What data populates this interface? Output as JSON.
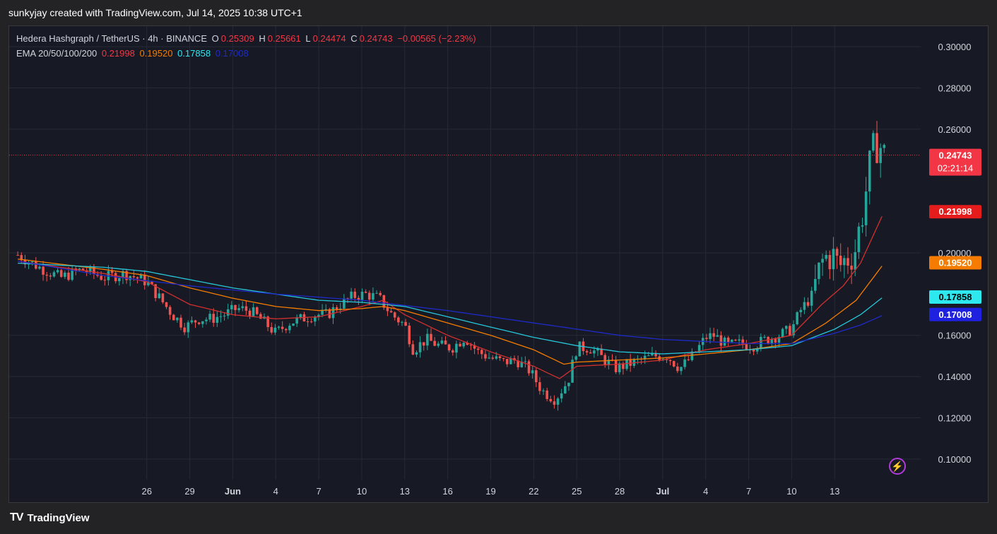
{
  "header": {
    "attribution": "sunkyjay created with TradingView.com, Jul 14, 2025 10:38 UTC+1"
  },
  "legend": {
    "symbol": "Hedera Hashgraph / TetherUS · 4h · BINANCE",
    "o_label": "O",
    "o_value": "0.25309",
    "h_label": "H",
    "h_value": "0.25661",
    "l_label": "L",
    "l_value": "0.24474",
    "c_label": "C",
    "c_value": "0.24743",
    "change": "−0.00565 (−2.23%)",
    "ema_label": "EMA 20/50/100/200",
    "ema_values": [
      "0.21998",
      "0.19520",
      "0.17858",
      "0.17008"
    ]
  },
  "footer": {
    "brand": "TradingView",
    "logo": "TV"
  },
  "colors": {
    "up": "#26a69a",
    "down": "#ef5350",
    "ema20": "#d32f2f",
    "ema50": "#f57c00",
    "ema100": "#26c6da",
    "ema200": "#1e2ac8",
    "grid": "#262a36",
    "last_price": "#f23645"
  },
  "chart_data": {
    "type": "candlestick",
    "timeframe": "4h",
    "ylim": [
      0.09,
      0.31
    ],
    "y_ticks": [
      "0.30000",
      "0.28000",
      "0.26000",
      "0.20000",
      "0.16000",
      "0.14000",
      "0.12000",
      "0.10000"
    ],
    "x_ticks": [
      {
        "label": "26",
        "t": 3
      },
      {
        "label": "29",
        "t": 4.0
      },
      {
        "label": "Jun",
        "t": 5
      },
      {
        "label": "4",
        "t": 6
      },
      {
        "label": "7",
        "t": 7
      },
      {
        "label": "10",
        "t": 8
      },
      {
        "label": "13",
        "t": 9
      },
      {
        "label": "16",
        "t": 10
      },
      {
        "label": "19",
        "t": 11
      },
      {
        "label": "22",
        "t": 12
      },
      {
        "label": "25",
        "t": 13
      },
      {
        "label": "28",
        "t": 14
      },
      {
        "label": "Jul",
        "t": 15
      },
      {
        "label": "4",
        "t": 16
      },
      {
        "label": "7",
        "t": 17
      },
      {
        "label": "10",
        "t": 18
      },
      {
        "label": "13",
        "t": 19
      }
    ],
    "close_series": [
      {
        "t": 0,
        "v": 0.199
      },
      {
        "t": 0.5,
        "v": 0.193
      },
      {
        "t": 1,
        "v": 0.188
      },
      {
        "t": 1.5,
        "v": 0.192
      },
      {
        "t": 2,
        "v": 0.188
      },
      {
        "t": 2.5,
        "v": 0.19
      },
      {
        "t": 3,
        "v": 0.186
      },
      {
        "t": 3.3,
        "v": 0.178
      },
      {
        "t": 3.6,
        "v": 0.17
      },
      {
        "t": 3.9,
        "v": 0.164
      },
      {
        "t": 4.2,
        "v": 0.168
      },
      {
        "t": 4.5,
        "v": 0.168
      },
      {
        "t": 4.8,
        "v": 0.17
      },
      {
        "t": 5.1,
        "v": 0.173
      },
      {
        "t": 5.4,
        "v": 0.172
      },
      {
        "t": 5.7,
        "v": 0.167
      },
      {
        "t": 6.0,
        "v": 0.161
      },
      {
        "t": 6.3,
        "v": 0.166
      },
      {
        "t": 6.6,
        "v": 0.168
      },
      {
        "t": 6.9,
        "v": 0.17
      },
      {
        "t": 7.2,
        "v": 0.17
      },
      {
        "t": 7.5,
        "v": 0.175
      },
      {
        "t": 7.8,
        "v": 0.179
      },
      {
        "t": 8.1,
        "v": 0.18
      },
      {
        "t": 8.4,
        "v": 0.178
      },
      {
        "t": 8.7,
        "v": 0.17
      },
      {
        "t": 9.0,
        "v": 0.165
      },
      {
        "t": 9.2,
        "v": 0.153
      },
      {
        "t": 9.5,
        "v": 0.158
      },
      {
        "t": 9.8,
        "v": 0.155
      },
      {
        "t": 10.1,
        "v": 0.154
      },
      {
        "t": 10.4,
        "v": 0.159
      },
      {
        "t": 10.7,
        "v": 0.152
      },
      {
        "t": 11.0,
        "v": 0.149
      },
      {
        "t": 11.3,
        "v": 0.147
      },
      {
        "t": 11.6,
        "v": 0.148
      },
      {
        "t": 11.9,
        "v": 0.143
      },
      {
        "t": 12.2,
        "v": 0.133
      },
      {
        "t": 12.5,
        "v": 0.129
      },
      {
        "t": 12.8,
        "v": 0.138
      },
      {
        "t": 13.0,
        "v": 0.154
      },
      {
        "t": 13.3,
        "v": 0.154
      },
      {
        "t": 13.6,
        "v": 0.149
      },
      {
        "t": 13.9,
        "v": 0.144
      },
      {
        "t": 14.2,
        "v": 0.146
      },
      {
        "t": 14.5,
        "v": 0.148
      },
      {
        "t": 14.8,
        "v": 0.15
      },
      {
        "t": 15.1,
        "v": 0.15
      },
      {
        "t": 15.4,
        "v": 0.144
      },
      {
        "t": 15.7,
        "v": 0.15
      },
      {
        "t": 16.0,
        "v": 0.159
      },
      {
        "t": 16.2,
        "v": 0.16
      },
      {
        "t": 16.5,
        "v": 0.155
      },
      {
        "t": 16.8,
        "v": 0.156
      },
      {
        "t": 17.1,
        "v": 0.155
      },
      {
        "t": 17.4,
        "v": 0.158
      },
      {
        "t": 17.7,
        "v": 0.16
      },
      {
        "t": 18.0,
        "v": 0.163
      },
      {
        "t": 18.2,
        "v": 0.172
      },
      {
        "t": 18.5,
        "v": 0.18
      },
      {
        "t": 18.7,
        "v": 0.195
      },
      {
        "t": 18.9,
        "v": 0.2
      },
      {
        "t": 19.1,
        "v": 0.193
      },
      {
        "t": 19.3,
        "v": 0.198
      },
      {
        "t": 19.5,
        "v": 0.203
      },
      {
        "t": 19.7,
        "v": 0.227
      },
      {
        "t": 19.85,
        "v": 0.245
      },
      {
        "t": 20.0,
        "v": 0.255
      },
      {
        "t": 20.15,
        "v": 0.247
      }
    ],
    "ema20": [
      {
        "t": 0,
        "v": 0.196
      },
      {
        "t": 2,
        "v": 0.19
      },
      {
        "t": 3,
        "v": 0.186
      },
      {
        "t": 4,
        "v": 0.175
      },
      {
        "t": 5,
        "v": 0.17
      },
      {
        "t": 6,
        "v": 0.168
      },
      {
        "t": 7,
        "v": 0.169
      },
      {
        "t": 8,
        "v": 0.174
      },
      {
        "t": 8.5,
        "v": 0.177
      },
      {
        "t": 9,
        "v": 0.17
      },
      {
        "t": 10,
        "v": 0.16
      },
      {
        "t": 11,
        "v": 0.152
      },
      {
        "t": 12,
        "v": 0.145
      },
      {
        "t": 12.6,
        "v": 0.139
      },
      {
        "t": 13,
        "v": 0.145
      },
      {
        "t": 14,
        "v": 0.146
      },
      {
        "t": 15,
        "v": 0.148
      },
      {
        "t": 16,
        "v": 0.153
      },
      {
        "t": 17,
        "v": 0.156
      },
      {
        "t": 18,
        "v": 0.16
      },
      {
        "t": 18.7,
        "v": 0.175
      },
      {
        "t": 19.2,
        "v": 0.184
      },
      {
        "t": 19.6,
        "v": 0.195
      },
      {
        "t": 20.15,
        "v": 0.22
      }
    ],
    "ema50": [
      {
        "t": 0,
        "v": 0.197
      },
      {
        "t": 2,
        "v": 0.192
      },
      {
        "t": 3,
        "v": 0.189
      },
      {
        "t": 4,
        "v": 0.183
      },
      {
        "t": 5,
        "v": 0.178
      },
      {
        "t": 6,
        "v": 0.174
      },
      {
        "t": 7,
        "v": 0.172
      },
      {
        "t": 8,
        "v": 0.173
      },
      {
        "t": 8.5,
        "v": 0.174
      },
      {
        "t": 9,
        "v": 0.172
      },
      {
        "t": 10,
        "v": 0.166
      },
      {
        "t": 11,
        "v": 0.16
      },
      {
        "t": 12,
        "v": 0.153
      },
      {
        "t": 12.7,
        "v": 0.146
      },
      {
        "t": 13,
        "v": 0.147
      },
      {
        "t": 14,
        "v": 0.148
      },
      {
        "t": 15,
        "v": 0.149
      },
      {
        "t": 16,
        "v": 0.151
      },
      {
        "t": 17,
        "v": 0.153
      },
      {
        "t": 18,
        "v": 0.156
      },
      {
        "t": 18.8,
        "v": 0.166
      },
      {
        "t": 19.5,
        "v": 0.177
      },
      {
        "t": 20.15,
        "v": 0.195
      }
    ],
    "ema100": [
      {
        "t": 0,
        "v": 0.195
      },
      {
        "t": 2,
        "v": 0.193
      },
      {
        "t": 3,
        "v": 0.191
      },
      {
        "t": 4,
        "v": 0.187
      },
      {
        "t": 5,
        "v": 0.183
      },
      {
        "t": 6,
        "v": 0.18
      },
      {
        "t": 7,
        "v": 0.177
      },
      {
        "t": 8,
        "v": 0.176
      },
      {
        "t": 9,
        "v": 0.174
      },
      {
        "t": 10,
        "v": 0.169
      },
      {
        "t": 11,
        "v": 0.164
      },
      {
        "t": 12,
        "v": 0.159
      },
      {
        "t": 13,
        "v": 0.155
      },
      {
        "t": 14,
        "v": 0.152
      },
      {
        "t": 15,
        "v": 0.151
      },
      {
        "t": 16,
        "v": 0.152
      },
      {
        "t": 17,
        "v": 0.153
      },
      {
        "t": 18,
        "v": 0.155
      },
      {
        "t": 19,
        "v": 0.163
      },
      {
        "t": 19.6,
        "v": 0.17
      },
      {
        "t": 20.15,
        "v": 0.179
      }
    ],
    "ema200": [
      {
        "t": 0,
        "v": 0.196
      },
      {
        "t": 2,
        "v": 0.189
      },
      {
        "t": 4,
        "v": 0.184
      },
      {
        "t": 6,
        "v": 0.18
      },
      {
        "t": 8,
        "v": 0.177
      },
      {
        "t": 10,
        "v": 0.172
      },
      {
        "t": 12,
        "v": 0.166
      },
      {
        "t": 13,
        "v": 0.163
      },
      {
        "t": 14,
        "v": 0.16
      },
      {
        "t": 15,
        "v": 0.158
      },
      {
        "t": 16,
        "v": 0.157
      },
      {
        "t": 17,
        "v": 0.156
      },
      {
        "t": 18,
        "v": 0.156
      },
      {
        "t": 19,
        "v": 0.161
      },
      {
        "t": 19.6,
        "v": 0.165
      },
      {
        "t": 20.15,
        "v": 0.17
      }
    ],
    "price_badges": [
      {
        "value": 0.24743,
        "label": "0.24743",
        "sub": "02:21:14",
        "color": "#f23645"
      },
      {
        "value": 0.21998,
        "label": "0.21998",
        "color": "#e51c1c"
      },
      {
        "value": 0.1952,
        "label": "0.19520",
        "color": "#f57c00"
      },
      {
        "value": 0.17858,
        "label": "0.17858",
        "color": "#2ee8f0"
      },
      {
        "value": 0.17008,
        "label": "0.17008",
        "color": "#1e22e0"
      }
    ]
  }
}
